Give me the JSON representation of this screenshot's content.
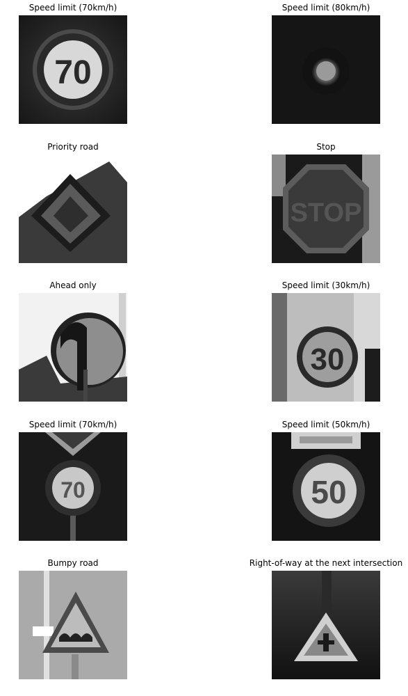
{
  "figure": {
    "panels": [
      {
        "title": "Speed limit (70km/h)",
        "sign": "speed-limit-70",
        "text": "70"
      },
      {
        "title": "Speed limit (80km/h)",
        "sign": "speed-limit-80",
        "text": ""
      },
      {
        "title": "Priority road",
        "sign": "priority-road",
        "text": ""
      },
      {
        "title": "Stop",
        "sign": "stop",
        "text": "STOP"
      },
      {
        "title": "Ahead only",
        "sign": "ahead-only",
        "text": ""
      },
      {
        "title": "Speed limit (30km/h)",
        "sign": "speed-limit-30",
        "text": "30"
      },
      {
        "title": "Speed limit (70km/h)",
        "sign": "speed-limit-70",
        "text": "70"
      },
      {
        "title": "Speed limit (50km/h)",
        "sign": "speed-limit-50",
        "text": "50"
      },
      {
        "title": "Bumpy road",
        "sign": "bumpy-road",
        "text": ""
      },
      {
        "title": "Right-of-way at the next intersection",
        "sign": "right-of-way",
        "text": ""
      }
    ]
  }
}
